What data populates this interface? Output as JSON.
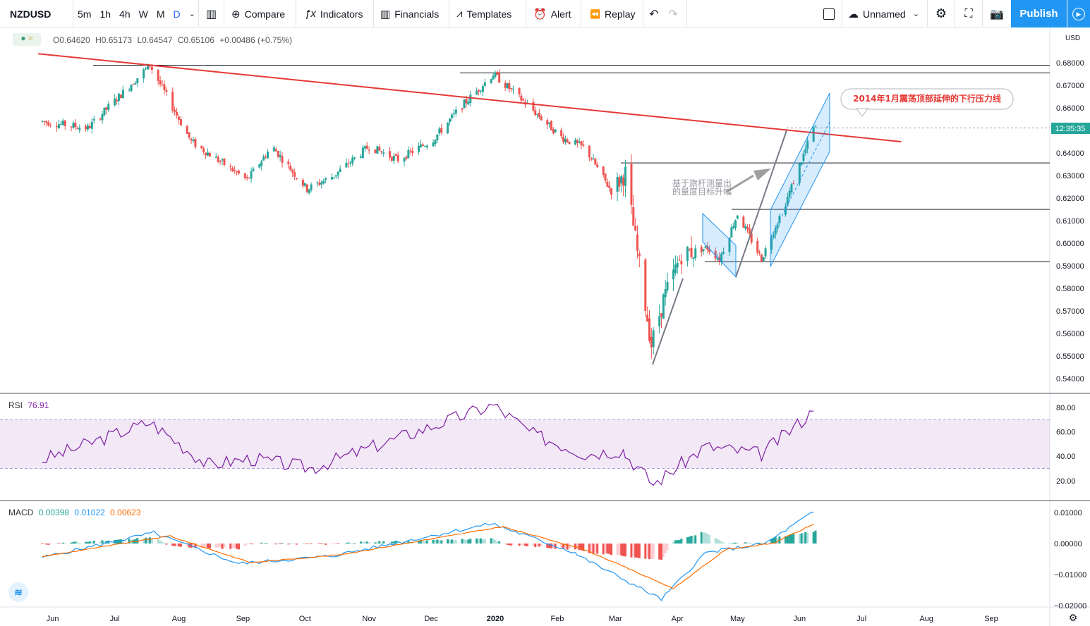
{
  "toolbar": {
    "symbol": "NZDUSD",
    "intervals": [
      "5m",
      "1h",
      "4h",
      "W",
      "M",
      "D"
    ],
    "active_interval": "D",
    "compare": "Compare",
    "indicators": "Indicators",
    "financials": "Financials",
    "templates": "Templates",
    "alert": "Alert",
    "replay": "Replay",
    "layout_name": "Unnamed",
    "publish": "Publish"
  },
  "ohlc": {
    "o": "O0.64620",
    "h": "H0.65173",
    "l": "L0.64547",
    "c": "C0.65106",
    "chg": "+0.00486 (+0.75%)"
  },
  "price_axis": {
    "currency": "USD",
    "ticks": [
      "0.68000",
      "0.67000",
      "0.66000",
      "0.65000",
      "0.64000",
      "0.63000",
      "0.62000",
      "0.61000",
      "0.60000",
      "0.59000",
      "0.58000",
      "0.57000",
      "0.56000",
      "0.55000",
      "0.54000"
    ],
    "countdown": "12:35:35"
  },
  "time_axis": [
    "Jun",
    "Jul",
    "Aug",
    "Sep",
    "Oct",
    "Nov",
    "Dec",
    "2020",
    "Feb",
    "Mar",
    "Apr",
    "May",
    "Jun",
    "Jul",
    "Aug",
    "Sep"
  ],
  "annotations": {
    "callout": "2014年1月震荡顶部延伸的下行压力线",
    "flag_note_1": "基于旗杆测量出",
    "flag_note_2": "的量度目标升幅"
  },
  "rsi": {
    "label": "RSI",
    "value": "76.91",
    "ticks": [
      "80.00",
      "60.00",
      "40.00",
      "20.00"
    ],
    "band": [
      30,
      70
    ]
  },
  "macd": {
    "label": "MACD",
    "v1": "0.00398",
    "v2": "0.01022",
    "v3": "0.00623",
    "ticks": [
      "0.01000",
      "0.00000",
      "−0.01000",
      "−0.02000"
    ]
  },
  "colors": {
    "up": "#26a69a",
    "down": "#ef5350",
    "resistance": "#e53935",
    "rsi": "#7e1fa3",
    "macd": "#2196f3",
    "signal": "#ff6d00",
    "accent": "#2962ff"
  },
  "chart_data": {
    "type": "candlestick",
    "symbol": "NZDUSD",
    "timeframe": "D",
    "ylim": [
      0.535,
      0.685
    ],
    "price_path": [
      {
        "x": "2019-05-27",
        "y": 0.654
      },
      {
        "x": "2019-06-18",
        "y": 0.651
      },
      {
        "x": "2019-07-18",
        "y": 0.679
      },
      {
        "x": "2019-08-07",
        "y": 0.645
      },
      {
        "x": "2019-09-03",
        "y": 0.628
      },
      {
        "x": "2019-09-15",
        "y": 0.643
      },
      {
        "x": "2019-10-02",
        "y": 0.624
      },
      {
        "x": "2019-10-15",
        "y": 0.63
      },
      {
        "x": "2019-11-01",
        "y": 0.643
      },
      {
        "x": "2019-11-15",
        "y": 0.637
      },
      {
        "x": "2019-12-02",
        "y": 0.646
      },
      {
        "x": "2019-12-15",
        "y": 0.66
      },
      {
        "x": "2019-12-31",
        "y": 0.675
      },
      {
        "x": "2020-01-15",
        "y": 0.663
      },
      {
        "x": "2020-02-03",
        "y": 0.647
      },
      {
        "x": "2020-02-15",
        "y": 0.642
      },
      {
        "x": "2020-02-28",
        "y": 0.623
      },
      {
        "x": "2020-03-06",
        "y": 0.631
      },
      {
        "x": "2020-03-19",
        "y": 0.555
      },
      {
        "x": "2020-03-25",
        "y": 0.575
      },
      {
        "x": "2020-04-03",
        "y": 0.595
      },
      {
        "x": "2020-04-16",
        "y": 0.598
      },
      {
        "x": "2020-04-22",
        "y": 0.593
      },
      {
        "x": "2020-05-01",
        "y": 0.613
      },
      {
        "x": "2020-05-13",
        "y": 0.593
      },
      {
        "x": "2020-05-25",
        "y": 0.618
      },
      {
        "x": "2020-06-08",
        "y": 0.651
      }
    ],
    "rsi_path": [
      {
        "x": "2019-05-27",
        "y": 37
      },
      {
        "x": "2019-07-18",
        "y": 68
      },
      {
        "x": "2019-08-15",
        "y": 33
      },
      {
        "x": "2019-09-05",
        "y": 38
      },
      {
        "x": "2019-10-05",
        "y": 30
      },
      {
        "x": "2019-11-15",
        "y": 55
      },
      {
        "x": "2019-12-31",
        "y": 82
      },
      {
        "x": "2020-01-20",
        "y": 58
      },
      {
        "x": "2020-02-15",
        "y": 42
      },
      {
        "x": "2020-03-05",
        "y": 45
      },
      {
        "x": "2020-03-20",
        "y": 17
      },
      {
        "x": "2020-04-15",
        "y": 48
      },
      {
        "x": "2020-05-13",
        "y": 42
      },
      {
        "x": "2020-06-08",
        "y": 77
      }
    ],
    "macd_path": [
      {
        "x": "2019-05-27",
        "y": -0.0045
      },
      {
        "x": "2019-07-20",
        "y": 0.0035
      },
      {
        "x": "2019-08-30",
        "y": -0.0065
      },
      {
        "x": "2019-10-15",
        "y": -0.004
      },
      {
        "x": "2019-12-31",
        "y": 0.0065
      },
      {
        "x": "2020-02-10",
        "y": -0.003
      },
      {
        "x": "2020-03-24",
        "y": -0.018
      },
      {
        "x": "2020-04-15",
        "y": -0.003
      },
      {
        "x": "2020-05-15",
        "y": 0.0
      },
      {
        "x": "2020-06-08",
        "y": 0.0102
      }
    ],
    "signal_path": [
      {
        "x": "2019-05-27",
        "y": -0.0042
      },
      {
        "x": "2019-07-28",
        "y": 0.0025
      },
      {
        "x": "2019-09-05",
        "y": -0.0062
      },
      {
        "x": "2019-10-20",
        "y": -0.0035
      },
      {
        "x": "2020-01-05",
        "y": 0.0055
      },
      {
        "x": "2020-02-15",
        "y": -0.002
      },
      {
        "x": "2020-03-30",
        "y": -0.0145
      },
      {
        "x": "2020-04-25",
        "y": -0.002
      },
      {
        "x": "2020-05-20",
        "y": 0.0002
      },
      {
        "x": "2020-06-08",
        "y": 0.0062
      }
    ],
    "horizontal_levels": [
      0.6789,
      0.6755,
      0.6356,
      0.615,
      0.5918
    ],
    "resistance_line": [
      {
        "x": "2019-05-25",
        "y": 0.684
      },
      {
        "x": "2020-07-20",
        "y": 0.645
      }
    ],
    "indicators": [
      "RSI",
      "MACD"
    ]
  }
}
